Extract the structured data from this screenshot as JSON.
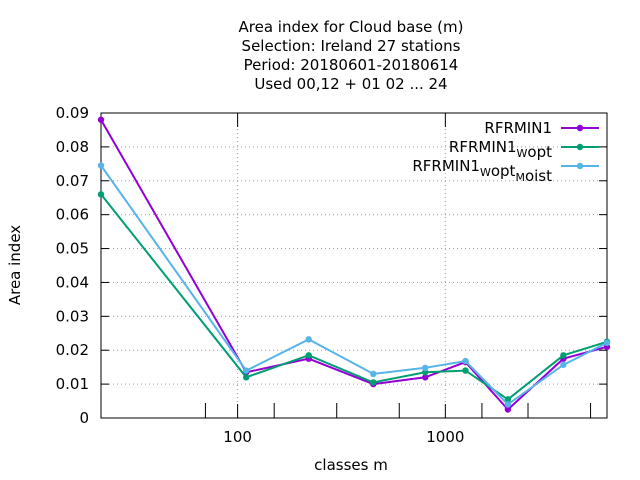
{
  "chart_data": {
    "type": "line",
    "title_lines": [
      "Area index  for Cloud base (m)",
      "Selection: Ireland     27 stations",
      "Period: 20180601-20180614",
      "Used  00,12  + 01 02 ... 24"
    ],
    "xlabel": "classes m",
    "ylabel": "Area index",
    "x_scale": "log",
    "xlim": [
      22,
      6000
    ],
    "ylim": [
      0,
      0.09
    ],
    "x_ticks": [
      {
        "value": 100,
        "label": "100"
      },
      {
        "value": 1000,
        "label": "1000"
      }
    ],
    "y_ticks": [
      {
        "value": 0,
        "label": "0"
      },
      {
        "value": 0.01,
        "label": "0.01"
      },
      {
        "value": 0.02,
        "label": "0.02"
      },
      {
        "value": 0.03,
        "label": "0.03"
      },
      {
        "value": 0.04,
        "label": "0.04"
      },
      {
        "value": 0.05,
        "label": "0.05"
      },
      {
        "value": 0.06,
        "label": "0.06"
      },
      {
        "value": 0.07,
        "label": "0.07"
      },
      {
        "value": 0.08,
        "label": "0.08"
      },
      {
        "value": 0.09,
        "label": "0.09"
      }
    ],
    "class_boundary_ticks": [
      70,
      150,
      300,
      600,
      1500,
      2500,
      5000
    ],
    "grid": true,
    "legend_position": "top-right",
    "x": [
      22,
      110,
      220,
      450,
      800,
      1250,
      2000,
      3700,
      6000
    ],
    "series": [
      {
        "name_main": "RFRMIN1",
        "name_parts": [
          {
            "text": "RFRMIN1",
            "sub": false
          }
        ],
        "color": "#9400d3",
        "values": [
          0.088,
          0.0135,
          0.0175,
          0.01,
          0.012,
          0.0165,
          0.0025,
          0.0175,
          0.021
        ]
      },
      {
        "name_main": "RFRMIN1_Wopt",
        "name_parts": [
          {
            "text": "RFRMIN1",
            "sub": false
          },
          {
            "text": "W",
            "sub": true
          },
          {
            "text": "opt",
            "sub": false
          }
        ],
        "color": "#009e73",
        "values": [
          0.066,
          0.012,
          0.0185,
          0.0105,
          0.0135,
          0.014,
          0.0055,
          0.0185,
          0.0225
        ]
      },
      {
        "name_main": "RFRMIN1_Wopt_Moist",
        "name_parts": [
          {
            "text": "RFRMIN1",
            "sub": false
          },
          {
            "text": "W",
            "sub": true
          },
          {
            "text": "opt",
            "sub": false
          },
          {
            "text": "M",
            "sub": true
          },
          {
            "text": "oist",
            "sub": false
          }
        ],
        "color": "#56b4e9",
        "values": [
          0.0745,
          0.014,
          0.0232,
          0.013,
          0.0148,
          0.0168,
          0.004,
          0.0157,
          0.0222
        ]
      }
    ]
  }
}
